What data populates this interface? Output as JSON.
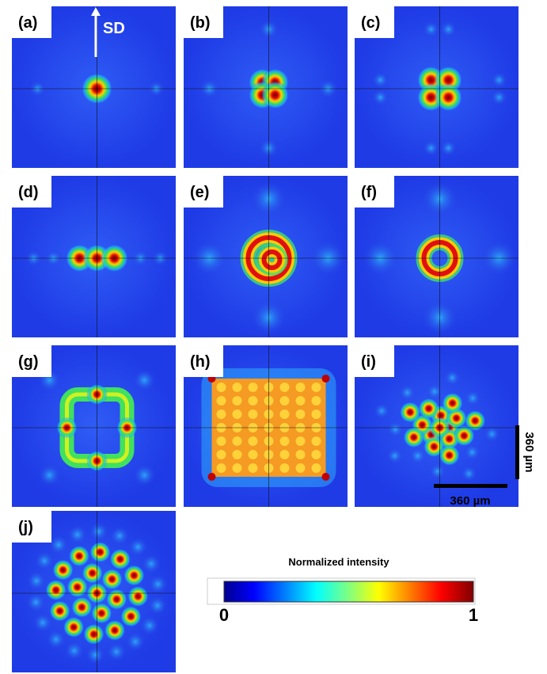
{
  "panels": [
    {
      "label": "(a)"
    },
    {
      "label": "(b)"
    },
    {
      "label": "(c)"
    },
    {
      "label": "(d)"
    },
    {
      "label": "(e)"
    },
    {
      "label": "(f)"
    },
    {
      "label": "(g)"
    },
    {
      "label": "(h)"
    },
    {
      "label": "(i)"
    },
    {
      "label": "(j)"
    }
  ],
  "direction_label": "SD",
  "scale_bars": [
    {
      "label": "360 µm"
    },
    {
      "label": "360 µm"
    }
  ],
  "colorbar": {
    "title": "Normalized intensity",
    "min_label": "0",
    "max_label": "1"
  }
}
